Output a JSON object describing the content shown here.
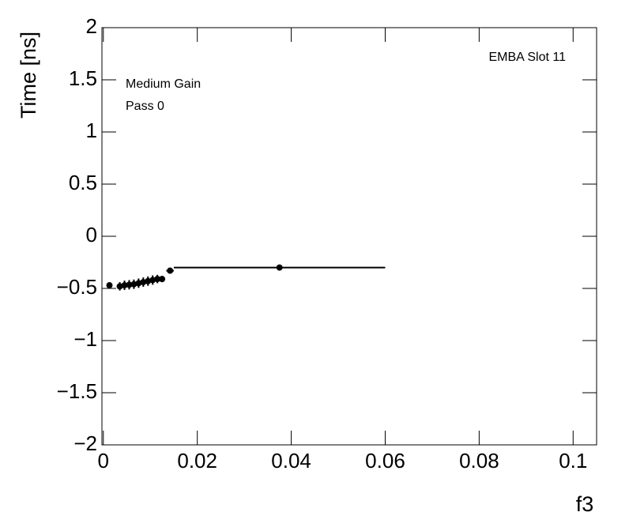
{
  "chart_data": {
    "type": "scatter",
    "xlabel": "f3",
    "ylabel": "Time [ns]",
    "annotations": [
      "EMBA Slot 11",
      "Medium Gain",
      "Pass 0"
    ],
    "xlim": [
      -0.0003,
      0.105
    ],
    "ylim": [
      -2,
      2
    ],
    "xticks": [
      0,
      0.02,
      0.04,
      0.06,
      0.08,
      0.1
    ],
    "yticks": [
      {
        "value": -2,
        "label": "−2"
      },
      {
        "value": -1.5,
        "label": "−1.5"
      },
      {
        "value": -1,
        "label": "−1"
      },
      {
        "value": -0.5,
        "label": "−0.5"
      },
      0,
      0.5,
      1,
      1.5,
      2
    ],
    "series": [
      {
        "name": "Pass 0",
        "color": "#000000",
        "x": [
          0.0013,
          0.0035,
          0.0045,
          0.0055,
          0.0065,
          0.0075,
          0.0085,
          0.0095,
          0.0105,
          0.0115,
          0.0125,
          0.0142,
          0.0375
        ],
        "values": [
          -0.47,
          -0.48,
          -0.47,
          -0.465,
          -0.46,
          -0.45,
          -0.44,
          -0.43,
          -0.42,
          -0.41,
          -0.41,
          -0.33,
          -0.3
        ],
        "xerr": [
          0.0005,
          0.0005,
          0.0005,
          0.0005,
          0.0005,
          0.0005,
          0.0005,
          0.0005,
          0.0005,
          0.0005,
          0.0005,
          0.0008,
          0.0225
        ],
        "yerr": [
          0.02,
          0.04,
          0.045,
          0.045,
          0.045,
          0.045,
          0.045,
          0.045,
          0.045,
          0.04,
          0.03,
          0.02,
          0.01
        ]
      }
    ]
  }
}
